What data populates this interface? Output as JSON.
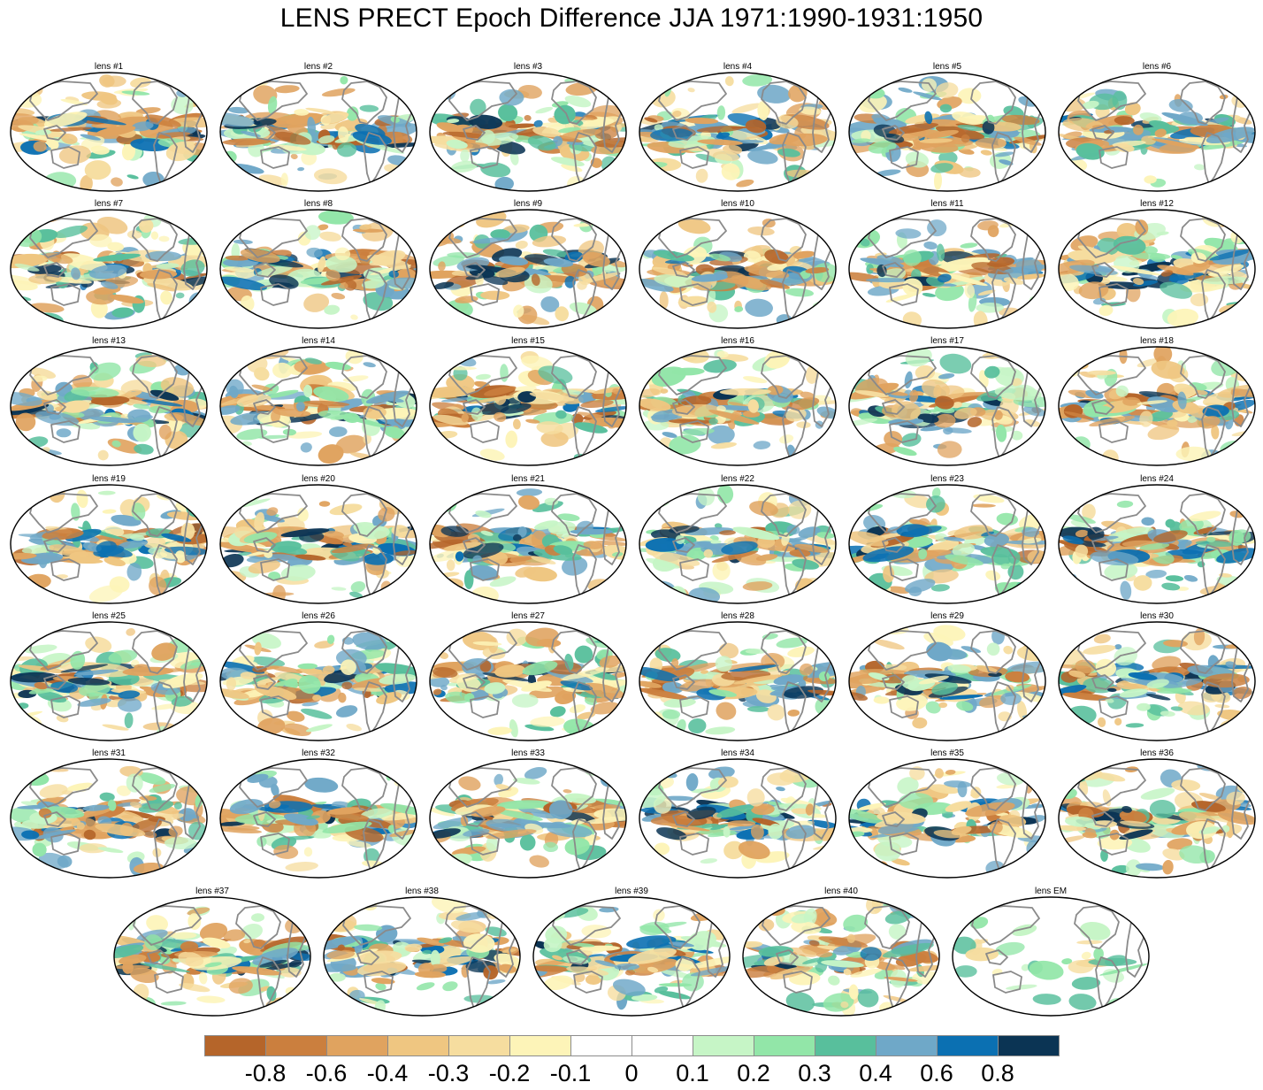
{
  "figure": {
    "title": "LENS PRECT Epoch Difference JJA 1971:1990-1931:1950"
  },
  "panels": [
    "lens #1",
    "lens #2",
    "lens #3",
    "lens #4",
    "lens #5",
    "lens #6",
    "lens #7",
    "lens #8",
    "lens #9",
    "lens #10",
    "lens #11",
    "lens #12",
    "lens #13",
    "lens #14",
    "lens #15",
    "lens #16",
    "lens #17",
    "lens #18",
    "lens #19",
    "lens #20",
    "lens #21",
    "lens #22",
    "lens #23",
    "lens #24",
    "lens #25",
    "lens #26",
    "lens #27",
    "lens #28",
    "lens #29",
    "lens #30",
    "lens #31",
    "lens #32",
    "lens #33",
    "lens #34",
    "lens #35",
    "lens #36",
    "lens #37",
    "lens #38",
    "lens #39",
    "lens #40",
    "lens EM"
  ],
  "colorbar": {
    "colors": [
      "#b5652a",
      "#cb7f3e",
      "#e0a35f",
      "#efc681",
      "#f6dd9f",
      "#fdf4b8",
      "#ffffff",
      "#ffffff",
      "#c6f5c6",
      "#92e6a8",
      "#58bf9c",
      "#6fa8c8",
      "#0b70b2",
      "#0b3454"
    ],
    "labels": [
      "-0.8",
      "-0.6",
      "-0.4",
      "-0.3",
      "-0.2",
      "-0.1",
      "0",
      "0.1",
      "0.2",
      "0.3",
      "0.4",
      "0.6",
      "0.8"
    ]
  },
  "map_style": {
    "coastline_color": "#8a8a8a",
    "border_color": "#000000",
    "projection": "Robinson"
  }
}
